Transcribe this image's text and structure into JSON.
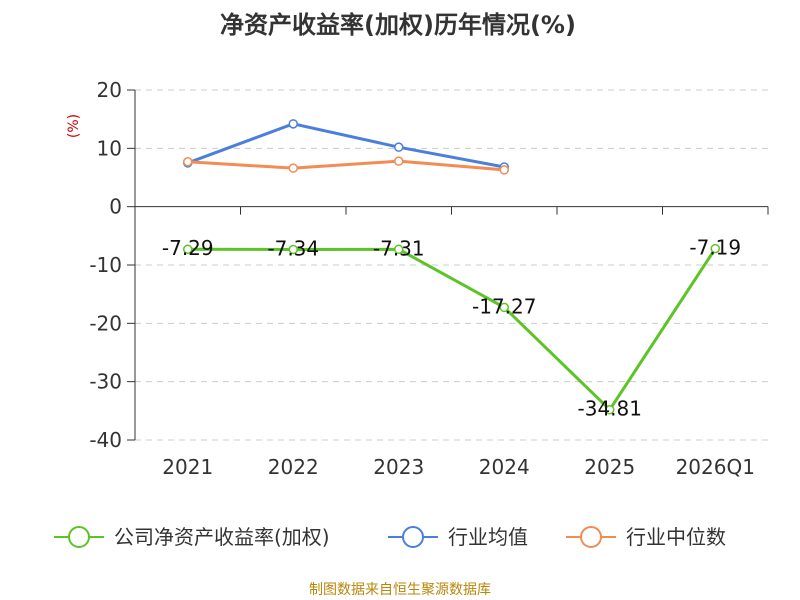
{
  "chart_data": {
    "type": "line",
    "title": "净资产收益率(加权)历年情况(%)",
    "ylabel": "(%)",
    "xlabel": "",
    "categories": [
      "2021",
      "2022",
      "2023",
      "2024",
      "2025",
      "2026Q1"
    ],
    "ylim": [
      -40,
      20
    ],
    "yticks": [
      20,
      10,
      0,
      -10,
      -20,
      -30,
      -40
    ],
    "grid": true,
    "legend_position": "bottom",
    "series": [
      {
        "name": "公司净资产收益率(加权)",
        "color": "#5cc427",
        "values": [
          -7.29,
          -7.34,
          -7.31,
          -17.27,
          -34.81,
          -7.19
        ],
        "labels": [
          "-7.29",
          "-7.34",
          "-7.31",
          "-17.27",
          "-34.81",
          "-7.19"
        ]
      },
      {
        "name": "行业均值",
        "color": "#4a7fdc",
        "values": [
          7.5,
          14.2,
          10.2,
          6.8,
          null,
          null
        ]
      },
      {
        "name": "行业中位数",
        "color": "#f28b54",
        "values": [
          7.7,
          6.6,
          7.8,
          6.3,
          null,
          null
        ]
      }
    ],
    "source": "制图数据来自恒生聚源数据库"
  }
}
